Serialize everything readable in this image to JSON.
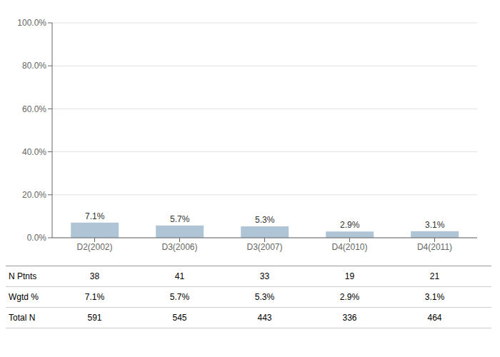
{
  "chart_data": {
    "type": "bar",
    "categories": [
      "D2(2002)",
      "D3(2006)",
      "D3(2007)",
      "D4(2010)",
      "D4(2011)"
    ],
    "values": [
      7.1,
      5.7,
      5.3,
      2.9,
      3.1
    ],
    "value_labels": [
      "7.1%",
      "5.7%",
      "5.3%",
      "2.9%",
      "3.1%"
    ],
    "data_labels": true,
    "color": "#afc5d5",
    "ylim": [
      0,
      100
    ],
    "yticks": [
      {
        "value": 0,
        "label": "0.0%"
      },
      {
        "value": 20,
        "label": "20.0%"
      },
      {
        "value": 40,
        "label": "40.0%"
      },
      {
        "value": 60,
        "label": "60.0%"
      },
      {
        "value": 80,
        "label": "80.0%"
      },
      {
        "value": 100,
        "label": "100.0%"
      }
    ],
    "grid": true,
    "table": {
      "row_labels": [
        "N Ptnts",
        "Wgtd %",
        "Total N"
      ],
      "rows": [
        [
          "38",
          "41",
          "33",
          "19",
          "21"
        ],
        [
          "7.1%",
          "5.7%",
          "5.3%",
          "2.9%",
          "3.1%"
        ],
        [
          "591",
          "545",
          "443",
          "336",
          "464"
        ]
      ]
    }
  }
}
